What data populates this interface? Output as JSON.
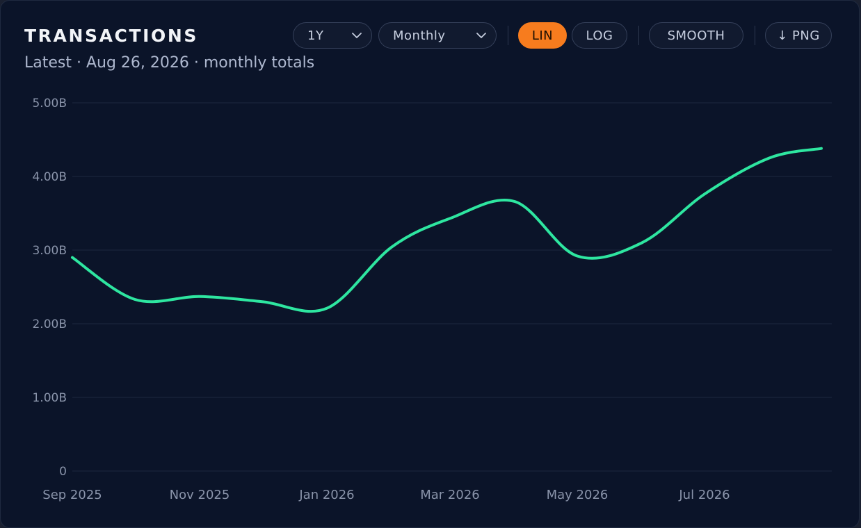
{
  "header": {
    "title": "TRANSACTIONS",
    "subtitle": "Latest · Aug 26, 2026 · monthly totals"
  },
  "controls": {
    "range": {
      "value": "1Y",
      "icon": "chevron-down-icon"
    },
    "interval": {
      "value": "Monthly",
      "icon": "chevron-down-icon"
    },
    "lin_label": "LIN",
    "log_label": "LOG",
    "smooth_label": "SMOOTH",
    "png_label": "↓ PNG",
    "active_scale": "LIN"
  },
  "colors": {
    "background": "#0b1429",
    "line": "#2ee6a0",
    "accent": "#f77c1e",
    "grid": "#1e2940"
  },
  "chart_data": {
    "type": "line",
    "title": "TRANSACTIONS",
    "xlabel": "",
    "ylabel": "",
    "ylim": [
      0,
      5000000000
    ],
    "yticks": [
      0,
      1000000000,
      2000000000,
      3000000000,
      4000000000,
      5000000000
    ],
    "ytick_labels": [
      "0",
      "1.00B",
      "2.00B",
      "3.00B",
      "4.00B",
      "5.00B"
    ],
    "xtick_labels": [
      "Sep 2025",
      "Nov 2025",
      "Jan 2026",
      "Mar 2026",
      "May 2026",
      "Jul 2026"
    ],
    "grid": true,
    "series": [
      {
        "x": [
          "2025-09",
          "2025-10",
          "2025-11",
          "2025-12",
          "2026-01",
          "2026-02",
          "2026-03",
          "2026-04",
          "2026-05",
          "2026-06",
          "2026-07",
          "2026-08",
          "2026-08-26"
        ],
        "values": [
          2900000000,
          2330000000,
          2370000000,
          2300000000,
          2210000000,
          3040000000,
          3430000000,
          3660000000,
          2920000000,
          3100000000,
          3760000000,
          4250000000,
          4380000000
        ]
      }
    ]
  }
}
